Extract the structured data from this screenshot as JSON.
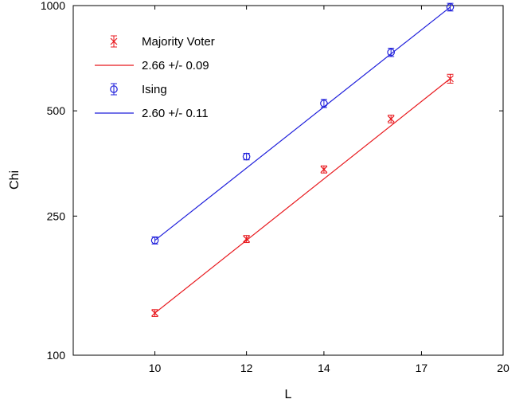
{
  "chart_data": {
    "type": "scatter",
    "xlabel": "L",
    "ylabel": "Chi",
    "x_scale": "log",
    "y_scale": "log",
    "xlim": [
      8.5,
      20
    ],
    "ylim": [
      100,
      1000
    ],
    "xticks": [
      10,
      12,
      14,
      17,
      20
    ],
    "yticks": [
      100,
      250,
      500,
      1000
    ],
    "xtick_labels": [
      "10",
      "12",
      "14",
      "17",
      "20"
    ],
    "ytick_labels": [
      "100",
      "250",
      "500",
      "1000"
    ],
    "grid": false,
    "legend_position": "top-left",
    "series": [
      {
        "name": "Majority Voter",
        "marker": "x",
        "color": "#e8171c",
        "fit_label": "2.66 +/- 0.09",
        "points": [
          {
            "x": 10,
            "y": 132,
            "err": 3
          },
          {
            "x": 12,
            "y": 215,
            "err": 5
          },
          {
            "x": 14,
            "y": 340,
            "err": 8
          },
          {
            "x": 16,
            "y": 474,
            "err": 12
          },
          {
            "x": 18,
            "y": 618,
            "err": 18
          }
        ]
      },
      {
        "name": "Ising",
        "marker": "circle",
        "color": "#1d1ddb",
        "fit_label": "2.60 +/- 0.11",
        "points": [
          {
            "x": 10,
            "y": 213,
            "err": 5
          },
          {
            "x": 12,
            "y": 370,
            "err": 8
          },
          {
            "x": 14,
            "y": 525,
            "err": 14
          },
          {
            "x": 16,
            "y": 735,
            "err": 20
          },
          {
            "x": 18,
            "y": 990,
            "err": 25
          }
        ]
      }
    ]
  }
}
